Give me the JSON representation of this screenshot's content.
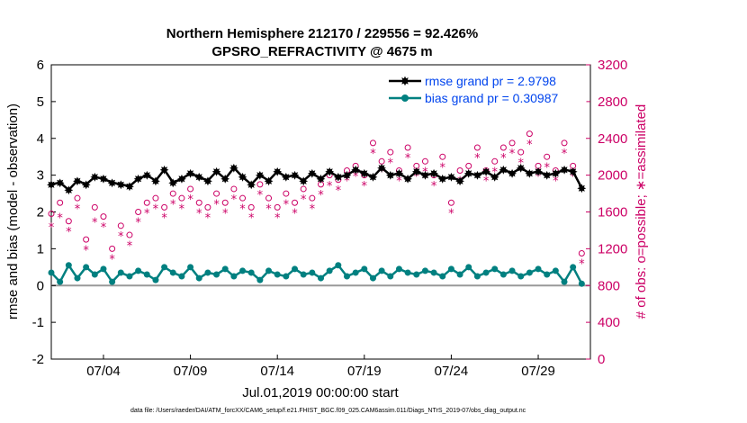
{
  "chart_data": {
    "type": "line",
    "title": "Northern Hemisphere 212170 / 229556 = 92.426%",
    "subtitle": "GPSRO_REFRACTIVITY @ 4675 m",
    "xlabel": "Jul.01,2019 00:00:00 start",
    "ylabel": "rmse and bias (model - observation)",
    "y2label": "# of obs: o=possible; ∗=assimilated",
    "xlim": [
      1.0,
      32.0
    ],
    "ylim": [
      -2,
      6
    ],
    "y2lim": [
      0,
      3200
    ],
    "x_ticks": [
      {
        "value": 4,
        "label": "07/04"
      },
      {
        "value": 9,
        "label": "07/09"
      },
      {
        "value": 14,
        "label": "07/14"
      },
      {
        "value": 19,
        "label": "07/19"
      },
      {
        "value": 24,
        "label": "07/24"
      },
      {
        "value": 29,
        "label": "07/29"
      }
    ],
    "y_ticks": [
      "-2",
      "-1",
      "0",
      "1",
      "2",
      "3",
      "4",
      "5",
      "6"
    ],
    "y2_ticks": [
      "0",
      "400",
      "800",
      "1200",
      "1600",
      "2000",
      "2400",
      "2800",
      "3200"
    ],
    "legend": [
      {
        "name": "rmse grand pr = 2.9798",
        "color": "#000000",
        "marker": "star"
      },
      {
        "name": "bias grand pr = 0.30987",
        "color": "#008080",
        "marker": "circle"
      }
    ],
    "legend_position": "top-right",
    "zero_line": 0,
    "series": [
      {
        "name": "rmse",
        "axis": "left",
        "color": "#000000",
        "x": [
          1.0,
          1.5,
          2.0,
          2.5,
          3.0,
          3.5,
          4.0,
          4.5,
          5.0,
          5.5,
          6.0,
          6.5,
          7.0,
          7.5,
          8.0,
          8.5,
          9.0,
          9.5,
          10.0,
          10.5,
          11.0,
          11.5,
          12.0,
          12.5,
          13.0,
          13.5,
          14.0,
          14.5,
          15.0,
          15.5,
          16.0,
          16.5,
          17.0,
          17.5,
          18.0,
          18.5,
          19.0,
          19.5,
          20.0,
          20.5,
          21.0,
          21.5,
          22.0,
          22.5,
          23.0,
          23.5,
          24.0,
          24.5,
          25.0,
          25.5,
          26.0,
          26.5,
          27.0,
          27.5,
          28.0,
          28.5,
          29.0,
          29.5,
          30.0,
          30.5,
          31.0,
          31.5
        ],
        "values": [
          2.75,
          2.8,
          2.6,
          2.85,
          2.75,
          2.95,
          2.9,
          2.8,
          2.75,
          2.7,
          2.9,
          3.0,
          2.85,
          3.15,
          2.8,
          2.9,
          3.05,
          2.95,
          2.85,
          3.1,
          2.9,
          3.2,
          2.95,
          2.75,
          3.0,
          2.85,
          3.1,
          2.95,
          3.0,
          2.85,
          3.05,
          2.9,
          3.1,
          2.95,
          3.0,
          3.15,
          3.05,
          2.95,
          3.2,
          3.0,
          3.05,
          2.9,
          3.1,
          3.0,
          3.05,
          2.9,
          2.95,
          2.85,
          3.05,
          3.0,
          3.1,
          2.95,
          3.15,
          3.05,
          3.2,
          3.05,
          3.1,
          3.0,
          3.05,
          3.15,
          3.1,
          2.65
        ]
      },
      {
        "name": "bias",
        "axis": "left",
        "color": "#008080",
        "x": [
          1.0,
          1.5,
          2.0,
          2.5,
          3.0,
          3.5,
          4.0,
          4.5,
          5.0,
          5.5,
          6.0,
          6.5,
          7.0,
          7.5,
          8.0,
          8.5,
          9.0,
          9.5,
          10.0,
          10.5,
          11.0,
          11.5,
          12.0,
          12.5,
          13.0,
          13.5,
          14.0,
          14.5,
          15.0,
          15.5,
          16.0,
          16.5,
          17.0,
          17.5,
          18.0,
          18.5,
          19.0,
          19.5,
          20.0,
          20.5,
          21.0,
          21.5,
          22.0,
          22.5,
          23.0,
          23.5,
          24.0,
          24.5,
          25.0,
          25.5,
          26.0,
          26.5,
          27.0,
          27.5,
          28.0,
          28.5,
          29.0,
          29.5,
          30.0,
          30.5,
          31.0,
          31.5
        ],
        "values": [
          0.35,
          0.1,
          0.55,
          0.2,
          0.5,
          0.3,
          0.45,
          0.1,
          0.35,
          0.25,
          0.4,
          0.3,
          0.15,
          0.5,
          0.35,
          0.25,
          0.5,
          0.2,
          0.35,
          0.3,
          0.45,
          0.25,
          0.4,
          0.35,
          0.15,
          0.4,
          0.3,
          0.25,
          0.45,
          0.3,
          0.35,
          0.2,
          0.4,
          0.55,
          0.25,
          0.35,
          0.45,
          0.2,
          0.4,
          0.25,
          0.45,
          0.35,
          0.3,
          0.4,
          0.35,
          0.25,
          0.45,
          0.3,
          0.5,
          0.25,
          0.35,
          0.45,
          0.3,
          0.4,
          0.25,
          0.35,
          0.45,
          0.3,
          0.4,
          0.1,
          0.5,
          0.05
        ]
      },
      {
        "name": "possible",
        "axis": "right",
        "color": "#cc0066",
        "marker": "o",
        "x": [
          1.0,
          1.5,
          2.0,
          2.5,
          3.0,
          3.5,
          4.0,
          4.5,
          5.0,
          5.5,
          6.0,
          6.5,
          7.0,
          7.5,
          8.0,
          8.5,
          9.0,
          9.5,
          10.0,
          10.5,
          11.0,
          11.5,
          12.0,
          12.5,
          13.0,
          13.5,
          14.0,
          14.5,
          15.0,
          15.5,
          16.0,
          16.5,
          17.0,
          17.5,
          18.0,
          18.5,
          19.0,
          19.5,
          20.0,
          20.5,
          21.0,
          21.5,
          22.0,
          22.5,
          23.0,
          23.5,
          24.0,
          24.5,
          25.0,
          25.5,
          26.0,
          26.5,
          27.0,
          27.5,
          28.0,
          28.5,
          29.0,
          29.5,
          30.0,
          30.5,
          31.0,
          31.5
        ],
        "values": [
          1580,
          1700,
          1500,
          1750,
          1300,
          1650,
          1550,
          1200,
          1450,
          1350,
          1600,
          1700,
          1750,
          1650,
          1800,
          1750,
          1850,
          1700,
          1650,
          1800,
          1700,
          1850,
          1750,
          1650,
          1900,
          1750,
          1650,
          1800,
          1700,
          1850,
          1750,
          1900,
          2000,
          1950,
          2050,
          2100,
          2000,
          2350,
          2150,
          2250,
          2050,
          2300,
          2100,
          2150,
          2000,
          2200,
          1700,
          2050,
          2100,
          2300,
          2050,
          2150,
          2300,
          2350,
          2250,
          2450,
          2100,
          2200,
          2050,
          2350,
          2100,
          1150
        ]
      },
      {
        "name": "assimilated",
        "axis": "right",
        "color": "#cc0066",
        "marker": "*",
        "x": [
          1.0,
          1.5,
          2.0,
          2.5,
          3.0,
          3.5,
          4.0,
          4.5,
          5.0,
          5.5,
          6.0,
          6.5,
          7.0,
          7.5,
          8.0,
          8.5,
          9.0,
          9.5,
          10.0,
          10.5,
          11.0,
          11.5,
          12.0,
          12.5,
          13.0,
          13.5,
          14.0,
          14.5,
          15.0,
          15.5,
          16.0,
          16.5,
          17.0,
          17.5,
          18.0,
          18.5,
          19.0,
          19.5,
          20.0,
          20.5,
          21.0,
          21.5,
          22.0,
          22.5,
          23.0,
          23.5,
          24.0,
          24.5,
          25.0,
          25.5,
          26.0,
          26.5,
          27.0,
          27.5,
          28.0,
          28.5,
          29.0,
          29.5,
          30.0,
          30.5,
          31.0,
          31.5
        ],
        "values": [
          1450,
          1550,
          1400,
          1650,
          1200,
          1500,
          1450,
          1100,
          1350,
          1250,
          1500,
          1600,
          1650,
          1550,
          1700,
          1650,
          1750,
          1600,
          1550,
          1700,
          1600,
          1750,
          1650,
          1550,
          1800,
          1650,
          1550,
          1700,
          1600,
          1750,
          1650,
          1800,
          1900,
          1850,
          1950,
          2000,
          1900,
          2250,
          2050,
          2150,
          1950,
          2200,
          2000,
          2050,
          1900,
          2100,
          1600,
          1950,
          2000,
          2200,
          1950,
          2050,
          2200,
          2250,
          2150,
          2350,
          2000,
          2100,
          1950,
          2250,
          2000,
          1050
        ]
      }
    ],
    "footnote": "data file: /Users/raeder/DAI/ATM_forcXX/CAM6_setup/f.e21.FHIST_BGC.f09_025.CAM6assim.011/Diags_NTrS_2019-07/obs_diag_output.nc"
  },
  "colors": {
    "rmse": "#000000",
    "bias": "#008080",
    "obs": "#cc0066",
    "legend_text": "#0044ee",
    "zero_line": "#999999"
  }
}
